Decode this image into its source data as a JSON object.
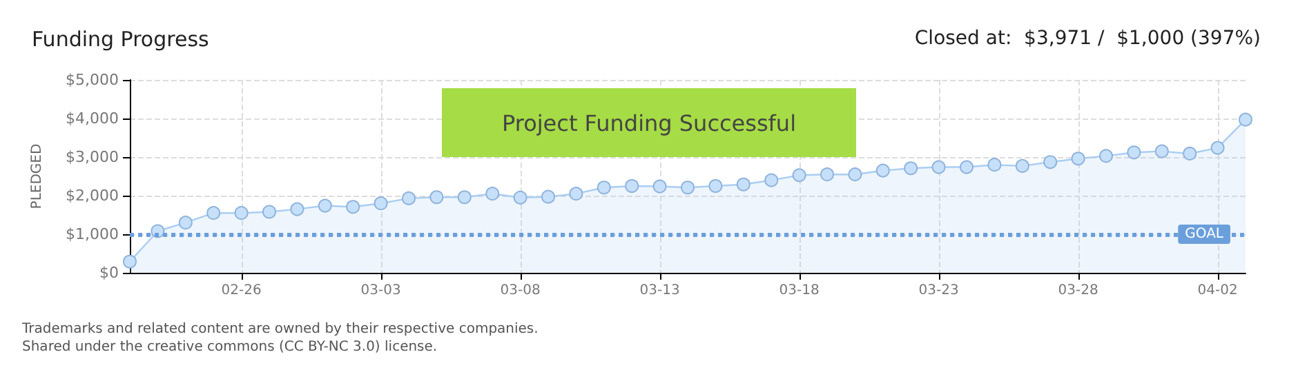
{
  "chart_data": {
    "type": "area",
    "title": "Funding Progress",
    "subtitle": "Closed at:  $3,971 /  $1,000 (397%)",
    "ylabel": "PLEDGED",
    "x": [
      "--02-22",
      "--02-23",
      "--02-24",
      "--02-25",
      "--02-26",
      "--02-27",
      "--02-28",
      "--03-01",
      "--03-02",
      "--03-03",
      "--03-04",
      "--03-05",
      "--03-06",
      "--03-07",
      "--03-08",
      "--03-09",
      "--03-10",
      "--03-11",
      "--03-12",
      "--03-13",
      "--03-14",
      "--03-15",
      "--03-16",
      "--03-17",
      "--03-18",
      "--03-19",
      "--03-20",
      "--03-21",
      "--03-22",
      "--03-23",
      "--03-24",
      "--03-25",
      "--03-26",
      "--03-27",
      "--03-28",
      "--03-29",
      "--03-30",
      "--03-31",
      "--04-01",
      "--04-02",
      "--04-03"
    ],
    "series": [
      {
        "color": "#a9cdf2",
        "values": [
          290,
          1080,
          1300,
          1550,
          1550,
          1580,
          1650,
          1740,
          1710,
          1800,
          1930,
          1960,
          1960,
          2050,
          1950,
          1970,
          2050,
          2210,
          2250,
          2240,
          2210,
          2250,
          2290,
          2400,
          2530,
          2550,
          2550,
          2650,
          2710,
          2740,
          2740,
          2800,
          2770,
          2870,
          2960,
          3030,
          3120,
          3150,
          3090,
          3240,
          3970
        ]
      }
    ],
    "xlim": [
      "--02-22",
      "--04-03"
    ],
    "xticks": [
      {
        "value": "--02-26",
        "label": "02-26"
      },
      {
        "value": "--03-03",
        "label": "03-03"
      },
      {
        "value": "--03-08",
        "label": "03-08"
      },
      {
        "value": "--03-13",
        "label": "03-13"
      },
      {
        "value": "--03-18",
        "label": "03-18"
      },
      {
        "value": "--03-23",
        "label": "03-23"
      },
      {
        "value": "--03-28",
        "label": "03-28"
      },
      {
        "value": "--04-02",
        "label": "04-02"
      }
    ],
    "ylim": [
      0,
      5000
    ],
    "yticks": [
      {
        "value": 0,
        "label": "$0"
      },
      {
        "value": 1000,
        "label": "$1,000"
      },
      {
        "value": 2000,
        "label": "$2,000"
      },
      {
        "value": 3000,
        "label": "$3,000"
      },
      {
        "value": 4000,
        "label": "$4,000"
      },
      {
        "value": 5000,
        "label": "$5,000"
      }
    ],
    "ref_lines": [
      {
        "axis": "y",
        "value": 1000,
        "label": "GOAL",
        "color": "#6a9fdc",
        "line_style": "dotted"
      }
    ],
    "annotations": [
      "Project Funding Successful",
      "Trademarks and related content are owned by their respective companies.",
      "Shared under the creative commons (CC BY-NC 3.0) license."
    ],
    "grid": true,
    "marker": "circle"
  }
}
